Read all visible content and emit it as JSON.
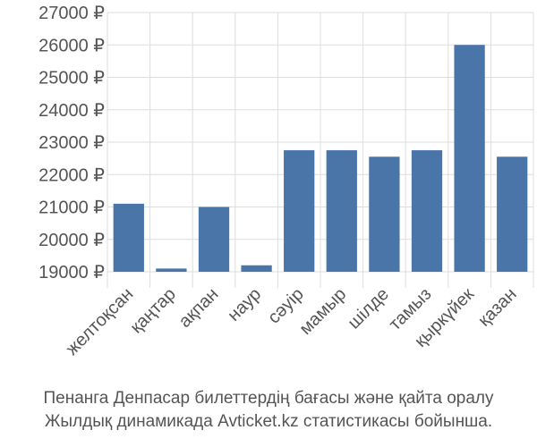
{
  "chart_data": {
    "type": "bar",
    "title": "",
    "xlabel": "",
    "ylabel": "",
    "categories": [
      "желтоқсан",
      "қаңтар",
      "ақпан",
      "наур",
      "сәуір",
      "мамыр",
      "шілде",
      "тамыз",
      "қыркүйек",
      "қазан"
    ],
    "values": [
      21100,
      19100,
      21000,
      19200,
      22750,
      22750,
      22550,
      22750,
      26000,
      22550
    ],
    "ylim": [
      19000,
      27000
    ],
    "yticks": [
      19000,
      20000,
      21000,
      22000,
      23000,
      24000,
      25000,
      26000,
      27000
    ],
    "ytick_labels": [
      "19000 ₽",
      "20000 ₽",
      "21000 ₽",
      "22000 ₽",
      "23000 ₽",
      "24000 ₽",
      "25000 ₽",
      "26000 ₽",
      "27000 ₽"
    ],
    "bar_color": "#4a75a8",
    "grid": true
  },
  "caption": {
    "line1": "Пенанга Денпасар билеттердің бағасы және қайта оралу",
    "line2": "Жылдық динамикада Avticket.kz статистикасы бойынша."
  }
}
